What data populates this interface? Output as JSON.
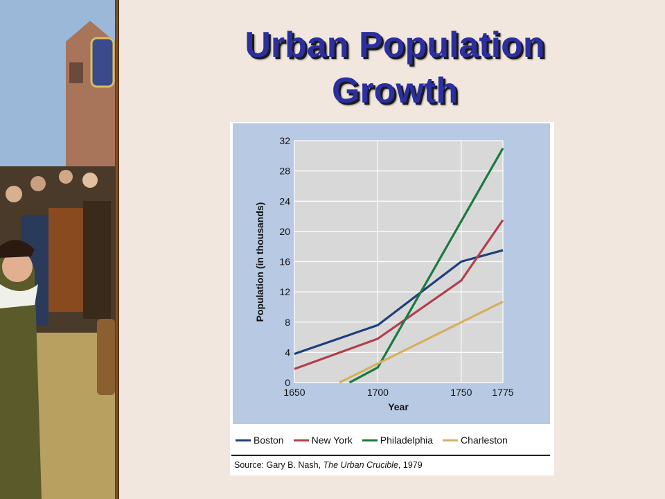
{
  "slide": {
    "title_line1": "Urban Population",
    "title_line2": "Growth"
  },
  "chart_data": {
    "type": "line",
    "ylabel": "Population (in thousands)",
    "xlabel": "Year",
    "xlim": [
      1650,
      1775
    ],
    "ylim": [
      0,
      32
    ],
    "xticks": [
      1650,
      1700,
      1750,
      1775
    ],
    "yticks": [
      0,
      4,
      8,
      12,
      16,
      20,
      24,
      28,
      32
    ],
    "grid": true,
    "legend_position": "bottom",
    "series": [
      {
        "name": "Boston",
        "color": "#1f3f7a",
        "x": [
          1650,
          1700,
          1750,
          1775
        ],
        "y": [
          3.8,
          7.6,
          16.0,
          17.5
        ]
      },
      {
        "name": "New York",
        "color": "#b0404e",
        "x": [
          1650,
          1700,
          1750,
          1775
        ],
        "y": [
          1.8,
          5.8,
          13.5,
          21.5
        ]
      },
      {
        "name": "Philadelphia",
        "color": "#1a7a3e",
        "x": [
          1683,
          1700,
          1775
        ],
        "y": [
          0,
          2.0,
          31.0
        ]
      },
      {
        "name": "Charleston",
        "color": "#d4b060",
        "x": [
          1677,
          1775
        ],
        "y": [
          0,
          10.7
        ]
      }
    ]
  },
  "source": {
    "prefix": "Source: Gary B. Nash, ",
    "title": "The Urban Crucible",
    "suffix": ", 1979"
  }
}
